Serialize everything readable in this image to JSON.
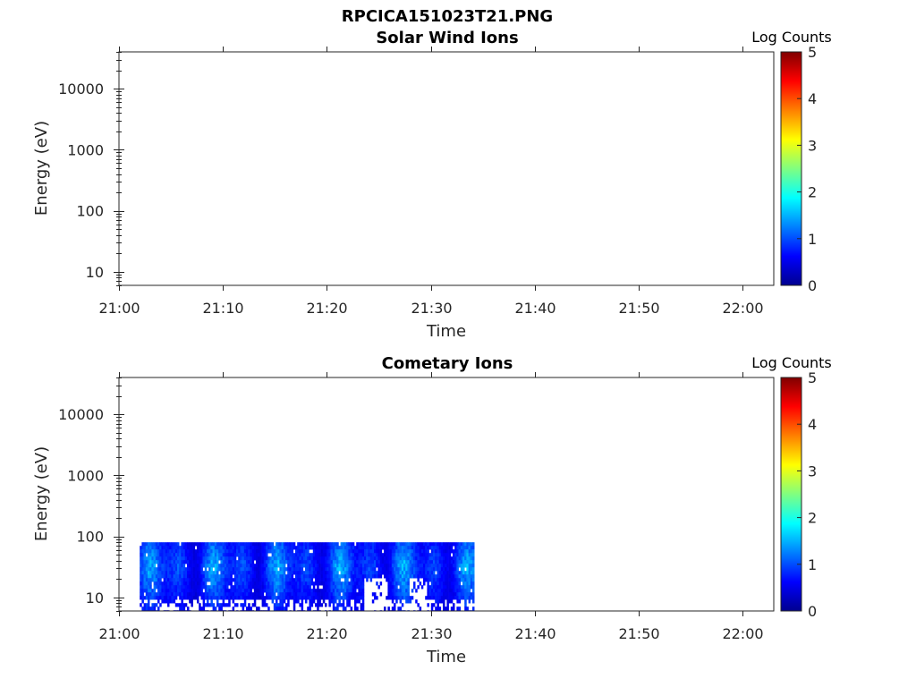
{
  "figure_title": "RPCICA151023T21.PNG",
  "colormap": [
    "#00008f",
    "#0000ff",
    "#0080ff",
    "#00ffff",
    "#80ff80",
    "#ffff00",
    "#ff8000",
    "#ff0000",
    "#800000"
  ],
  "chart_data": [
    {
      "type": "heatmap",
      "title": "Solar Wind Ions",
      "xlabel": "Time",
      "ylabel": "Energy (eV)",
      "y_scale": "log",
      "ylim": [
        6,
        40000
      ],
      "y_ticks": [
        10,
        100,
        1000,
        10000
      ],
      "y_tick_labels": [
        "10",
        "100",
        "1000",
        "10000"
      ],
      "x_tick_labels": [
        "21:00",
        "21:10",
        "21:20",
        "21:30",
        "21:40",
        "21:50",
        "22:00"
      ],
      "colorbar": {
        "label": "Log Counts",
        "range": [
          0,
          5
        ],
        "ticks": [
          "0",
          "1",
          "2",
          "3",
          "4",
          "5"
        ]
      },
      "data_regions": []
    },
    {
      "type": "heatmap",
      "title": "Cometary Ions",
      "xlabel": "Time",
      "ylabel": "Energy (eV)",
      "y_scale": "log",
      "ylim": [
        6,
        40000
      ],
      "y_ticks": [
        10,
        100,
        1000,
        10000
      ],
      "y_tick_labels": [
        "10",
        "100",
        "1000",
        "10000"
      ],
      "x_tick_labels": [
        "21:00",
        "21:10",
        "21:20",
        "21:30",
        "21:40",
        "21:50",
        "22:00"
      ],
      "colorbar": {
        "label": "Log Counts",
        "range": [
          0,
          5
        ],
        "ticks": [
          "0",
          "1",
          "2",
          "3",
          "4",
          "5"
        ]
      },
      "data_regions": [
        {
          "time_start": "21:02",
          "time_end": "21:34",
          "energy_min": 6,
          "energy_max": 80,
          "log_counts_range": [
            0,
            1.8
          ]
        }
      ]
    }
  ]
}
